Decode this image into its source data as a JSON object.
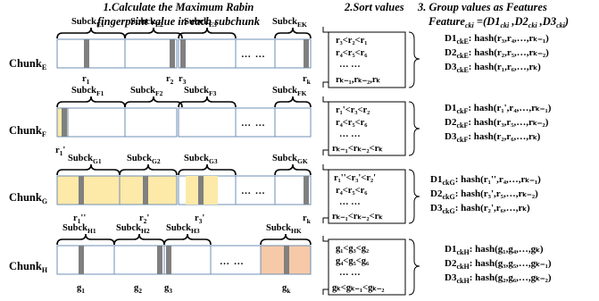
{
  "header": {
    "step1_line1": "1.Calculate the Maximum Rabin",
    "step1_line2": "fingerprint value in each subchunk",
    "step2": "2.Sort values",
    "step3_line1": "3. Group values as Features",
    "step3_line2": "Feature",
    "step3_line2_sub": "cki",
    "step3_line2_rest": " =(D1",
    "step3_line2_sub2": "cki",
    "step3_line2_rest2": " ,D2",
    "step3_line2_sub3": "cki",
    "step3_line2_rest3": " ,D3",
    "step3_line2_sub4": "cki",
    "step3_line2_rest4": ")"
  },
  "ellipsis": "… …",
  "vdots": "… …",
  "highlight_colors": {
    "none": "#ffffff",
    "yellow": "#fde9a8",
    "orange": "#f6c9a8",
    "marker": "#808080",
    "border": "#6d8fb5"
  },
  "rows": [
    {
      "label": "Chunk",
      "label_sub": "E",
      "subchunks": [
        {
          "name": "Subck",
          "sub": "E1"
        },
        {
          "name": "Subck",
          "sub": "E2"
        },
        {
          "name": "Subck",
          "sub": "E3"
        },
        {
          "name": "Subck",
          "sub": "EK"
        }
      ],
      "markers": [
        {
          "name": "r",
          "sub": "1"
        },
        {
          "name": "r",
          "sub": "2"
        },
        {
          "name": "r",
          "sub": "3"
        },
        {
          "name": "r",
          "sub": "k"
        }
      ],
      "sort": [
        "r₃<r₂<r₁",
        "r₄<r₅<r₆",
        "…   …",
        "rₖ₋₁,rₖ₋₂,rₖ"
      ],
      "features": [
        {
          "d": "D1",
          "sub": "ckE",
          "val": "hash(r₃,r₄,…,rₖ₋₁)"
        },
        {
          "d": "D2",
          "sub": "ckE",
          "val": "hash(r₂,r₅,…,rₖ₋₂)"
        },
        {
          "d": "D3",
          "sub": "ckE",
          "val": "hash(r₁,r₆,…,rₖ)"
        }
      ]
    },
    {
      "label": "Chunk",
      "label_sub": "F",
      "subchunks": [
        {
          "name": "Subck",
          "sub": "F1"
        },
        {
          "name": "Subck",
          "sub": "F2"
        },
        {
          "name": "Subck",
          "sub": "F3"
        },
        {
          "name": "Subck",
          "sub": "FK"
        }
      ],
      "markers": [
        {
          "name": "r",
          "sub": "1",
          "prime": "'"
        }
      ],
      "sort": [
        "r₁'<r₃<r₂",
        "r₄<r₅<r₆",
        "…   …",
        "rₖ₋₁<rₖ₋₂<rₖ"
      ],
      "features": [
        {
          "d": "D1",
          "sub": "ckF",
          "val": "hash(r₁',r₄,…,rₖ₋₁)"
        },
        {
          "d": "D2",
          "sub": "ckF",
          "val": "hash(r₃,r₅,…,rₖ₋₂)"
        },
        {
          "d": "D3",
          "sub": "ckF",
          "val": "hash(r₂,r₆,…,rₖ)"
        }
      ]
    },
    {
      "label": "Chunk",
      "label_sub": "G",
      "subchunks": [
        {
          "name": "Subck",
          "sub": "G1"
        },
        {
          "name": "Subck",
          "sub": "G2"
        },
        {
          "name": "Subck",
          "sub": "G3"
        },
        {
          "name": "Subck",
          "sub": "GK"
        }
      ],
      "markers": [
        {
          "name": "r",
          "sub": "1",
          "prime": "''"
        },
        {
          "name": "r",
          "sub": "2",
          "prime": "'"
        },
        {
          "name": "r",
          "sub": "3",
          "prime": "'"
        },
        {
          "name": "r",
          "sub": "k"
        }
      ],
      "sort": [
        "r₁''<r₃'<r₂'",
        "r₄<r₅<r₆",
        "…   …",
        "rₖ₋₁<rₖ₋₂<rₖ"
      ],
      "features": [
        {
          "d": "D1",
          "sub": "ckG",
          "val": "hash(r₁'',r₄,…,rₖ₋₁)"
        },
        {
          "d": "D2",
          "sub": "ckG",
          "val": "hash(r₃',r₅,…,rₖ₋₂)"
        },
        {
          "d": "D3",
          "sub": "ckG",
          "val": "hash(r₂',r₆,…,rₖ)"
        }
      ]
    },
    {
      "label": "Chunk",
      "label_sub": "H",
      "subchunks": [
        {
          "name": "Subck",
          "sub": "H1"
        },
        {
          "name": "Subck",
          "sub": "H2"
        },
        {
          "name": "Subck",
          "sub": "H3"
        },
        {
          "name": "Subck",
          "sub": "HK"
        }
      ],
      "markers": [
        {
          "name": "g",
          "sub": "1"
        },
        {
          "name": "g",
          "sub": "2"
        },
        {
          "name": "g",
          "sub": "3"
        },
        {
          "name": "g",
          "sub": "k"
        }
      ],
      "sort": [
        "g₁<g₃<g₂",
        "g₄<g₅<g₆",
        "…   …",
        "gₖ<gₖ₋₁<gₖ₋₂"
      ],
      "features": [
        {
          "d": "D1",
          "sub": "ckH",
          "val": "hash(g₁,g₄,…,gₖ)"
        },
        {
          "d": "D2",
          "sub": "ckH",
          "val": "hash(g₃,g₅,…,gₖ₋₁)"
        },
        {
          "d": "D3",
          "sub": "ckH",
          "val": "hash(g₂,g₆,…,gₖ₋₂)"
        }
      ]
    }
  ]
}
